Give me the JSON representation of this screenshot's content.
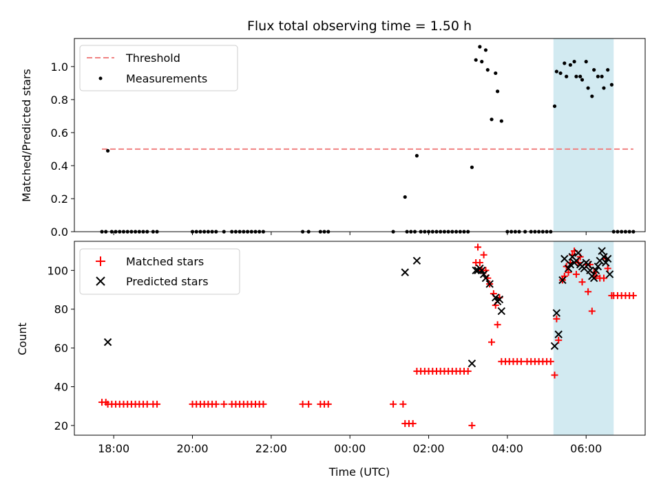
{
  "chart_data": {
    "type": "scatter",
    "title": "Flux total observing time = 1.50 h",
    "xlabel": "Time (UTC)",
    "x_ticks": [
      "18:00",
      "20:00",
      "22:00",
      "00:00",
      "02:00",
      "04:00",
      "06:00"
    ],
    "x_range_hours": [
      17.0,
      31.5
    ],
    "highlight_span_hours": [
      29.17,
      30.7
    ],
    "colors": {
      "threshold": "#f08080",
      "measurement": "#000000",
      "matched": "#ff0000",
      "predicted": "#000000",
      "span": "#add8e6"
    },
    "top_panel": {
      "ylabel": "Matched/Predicted stars",
      "ylim": [
        0,
        1.17
      ],
      "y_ticks": [
        "0.0",
        "0.2",
        "0.4",
        "0.6",
        "0.8",
        "1.0"
      ],
      "legend": [
        "Threshold",
        "Measurements"
      ],
      "threshold": {
        "value": 0.5,
        "x_range_hours": [
          17.7,
          31.2
        ]
      },
      "measurements": [
        [
          17.7,
          0
        ],
        [
          17.8,
          0
        ],
        [
          17.85,
          0.49
        ],
        [
          17.95,
          0
        ],
        [
          18.05,
          0
        ],
        [
          18.15,
          0
        ],
        [
          18.25,
          0
        ],
        [
          18.35,
          0
        ],
        [
          18.45,
          0
        ],
        [
          18.55,
          0
        ],
        [
          18.65,
          0
        ],
        [
          18.75,
          0
        ],
        [
          18.85,
          0
        ],
        [
          19.0,
          0
        ],
        [
          19.1,
          0
        ],
        [
          20.0,
          0
        ],
        [
          20.1,
          0
        ],
        [
          20.2,
          0
        ],
        [
          20.3,
          0
        ],
        [
          20.4,
          0
        ],
        [
          20.5,
          0
        ],
        [
          20.6,
          0
        ],
        [
          20.8,
          0
        ],
        [
          21.0,
          0
        ],
        [
          21.1,
          0
        ],
        [
          21.2,
          0
        ],
        [
          21.3,
          0
        ],
        [
          21.4,
          0
        ],
        [
          21.5,
          0
        ],
        [
          21.6,
          0
        ],
        [
          21.7,
          0
        ],
        [
          21.8,
          0
        ],
        [
          22.8,
          0
        ],
        [
          22.95,
          0
        ],
        [
          23.25,
          0
        ],
        [
          23.35,
          0
        ],
        [
          23.45,
          0
        ],
        [
          25.1,
          0
        ],
        [
          25.4,
          0.21
        ],
        [
          25.45,
          0
        ],
        [
          25.55,
          0
        ],
        [
          25.65,
          0
        ],
        [
          25.7,
          0.46
        ],
        [
          25.8,
          0
        ],
        [
          25.9,
          0
        ],
        [
          26.0,
          0
        ],
        [
          26.1,
          0
        ],
        [
          26.2,
          0
        ],
        [
          26.3,
          0
        ],
        [
          26.4,
          0
        ],
        [
          26.5,
          0
        ],
        [
          26.6,
          0
        ],
        [
          26.7,
          0
        ],
        [
          26.8,
          0
        ],
        [
          26.9,
          0
        ],
        [
          27.0,
          0
        ],
        [
          27.1,
          0.39
        ],
        [
          27.2,
          1.04
        ],
        [
          27.3,
          1.12
        ],
        [
          27.35,
          1.03
        ],
        [
          27.45,
          1.1
        ],
        [
          27.5,
          0.98
        ],
        [
          27.6,
          0.68
        ],
        [
          27.7,
          0.96
        ],
        [
          27.75,
          0.85
        ],
        [
          27.85,
          0.67
        ],
        [
          28.0,
          0
        ],
        [
          28.1,
          0
        ],
        [
          28.2,
          0
        ],
        [
          28.3,
          0
        ],
        [
          28.45,
          0
        ],
        [
          28.6,
          0
        ],
        [
          28.7,
          0
        ],
        [
          28.8,
          0
        ],
        [
          28.9,
          0
        ],
        [
          29.0,
          0
        ],
        [
          29.1,
          0
        ],
        [
          29.2,
          0.76
        ],
        [
          29.25,
          0.97
        ],
        [
          29.35,
          0.96
        ],
        [
          29.45,
          1.02
        ],
        [
          29.5,
          0.94
        ],
        [
          29.6,
          1.01
        ],
        [
          29.7,
          1.03
        ],
        [
          29.75,
          0.94
        ],
        [
          29.85,
          0.94
        ],
        [
          29.9,
          0.92
        ],
        [
          30.0,
          1.03
        ],
        [
          30.05,
          0.87
        ],
        [
          30.15,
          0.82
        ],
        [
          30.2,
          0.98
        ],
        [
          30.3,
          0.94
        ],
        [
          30.4,
          0.94
        ],
        [
          30.45,
          0.87
        ],
        [
          30.55,
          0.98
        ],
        [
          30.65,
          0.89
        ],
        [
          30.7,
          0
        ],
        [
          30.8,
          0
        ],
        [
          30.9,
          0
        ],
        [
          31.0,
          0
        ],
        [
          31.1,
          0
        ],
        [
          31.2,
          0
        ]
      ]
    },
    "bottom_panel": {
      "ylabel": "Count",
      "ylim": [
        15,
        115
      ],
      "y_ticks": [
        "20",
        "40",
        "60",
        "80",
        "100"
      ],
      "legend": [
        "Matched stars",
        "Predicted stars"
      ],
      "matched": [
        [
          17.7,
          32
        ],
        [
          17.8,
          32
        ],
        [
          17.85,
          31
        ],
        [
          17.95,
          31
        ],
        [
          18.05,
          31
        ],
        [
          18.15,
          31
        ],
        [
          18.25,
          31
        ],
        [
          18.35,
          31
        ],
        [
          18.45,
          31
        ],
        [
          18.55,
          31
        ],
        [
          18.65,
          31
        ],
        [
          18.75,
          31
        ],
        [
          18.85,
          31
        ],
        [
          19.0,
          31
        ],
        [
          19.1,
          31
        ],
        [
          20.0,
          31
        ],
        [
          20.1,
          31
        ],
        [
          20.2,
          31
        ],
        [
          20.3,
          31
        ],
        [
          20.4,
          31
        ],
        [
          20.5,
          31
        ],
        [
          20.6,
          31
        ],
        [
          20.8,
          31
        ],
        [
          21.0,
          31
        ],
        [
          21.1,
          31
        ],
        [
          21.2,
          31
        ],
        [
          21.3,
          31
        ],
        [
          21.4,
          31
        ],
        [
          21.5,
          31
        ],
        [
          21.6,
          31
        ],
        [
          21.7,
          31
        ],
        [
          21.8,
          31
        ],
        [
          22.8,
          31
        ],
        [
          22.95,
          31
        ],
        [
          23.25,
          31
        ],
        [
          23.35,
          31
        ],
        [
          23.45,
          31
        ],
        [
          25.1,
          31
        ],
        [
          25.35,
          31
        ],
        [
          25.4,
          21
        ],
        [
          25.5,
          21
        ],
        [
          25.6,
          21
        ],
        [
          25.7,
          48
        ],
        [
          25.8,
          48
        ],
        [
          25.9,
          48
        ],
        [
          26.0,
          48
        ],
        [
          26.1,
          48
        ],
        [
          26.2,
          48
        ],
        [
          26.3,
          48
        ],
        [
          26.4,
          48
        ],
        [
          26.5,
          48
        ],
        [
          26.6,
          48
        ],
        [
          26.7,
          48
        ],
        [
          26.8,
          48
        ],
        [
          26.9,
          48
        ],
        [
          27.0,
          48
        ],
        [
          27.1,
          20
        ],
        [
          27.2,
          104
        ],
        [
          27.25,
          112
        ],
        [
          27.3,
          104
        ],
        [
          27.35,
          100
        ],
        [
          27.4,
          108
        ],
        [
          27.45,
          100
        ],
        [
          27.5,
          96
        ],
        [
          27.55,
          93
        ],
        [
          27.6,
          63
        ],
        [
          27.65,
          88
        ],
        [
          27.7,
          82
        ],
        [
          27.75,
          72
        ],
        [
          27.8,
          86
        ],
        [
          27.85,
          53
        ],
        [
          27.95,
          53
        ],
        [
          28.05,
          53
        ],
        [
          28.15,
          53
        ],
        [
          28.25,
          53
        ],
        [
          28.35,
          53
        ],
        [
          28.5,
          53
        ],
        [
          28.6,
          53
        ],
        [
          28.7,
          53
        ],
        [
          28.8,
          53
        ],
        [
          28.9,
          53
        ],
        [
          29.0,
          53
        ],
        [
          29.1,
          53
        ],
        [
          29.2,
          46
        ],
        [
          29.25,
          75
        ],
        [
          29.3,
          64
        ],
        [
          29.4,
          95
        ],
        [
          29.45,
          97
        ],
        [
          29.5,
          102
        ],
        [
          29.55,
          99
        ],
        [
          29.6,
          104
        ],
        [
          29.65,
          108
        ],
        [
          29.7,
          110
        ],
        [
          29.75,
          98
        ],
        [
          29.8,
          104
        ],
        [
          29.85,
          107
        ],
        [
          29.9,
          94
        ],
        [
          30.0,
          103
        ],
        [
          30.05,
          89
        ],
        [
          30.1,
          103
        ],
        [
          30.15,
          79
        ],
        [
          30.2,
          99
        ],
        [
          30.25,
          97
        ],
        [
          30.35,
          96
        ],
        [
          30.45,
          96
        ],
        [
          30.5,
          106
        ],
        [
          30.55,
          101
        ],
        [
          30.65,
          87
        ],
        [
          30.7,
          87
        ],
        [
          30.8,
          87
        ],
        [
          30.9,
          87
        ],
        [
          31.0,
          87
        ],
        [
          31.1,
          87
        ],
        [
          31.2,
          87
        ]
      ],
      "predicted": [
        [
          17.85,
          63
        ],
        [
          25.4,
          99
        ],
        [
          25.7,
          105
        ],
        [
          27.1,
          52
        ],
        [
          27.2,
          100
        ],
        [
          27.25,
          100
        ],
        [
          27.3,
          101
        ],
        [
          27.35,
          100
        ],
        [
          27.4,
          98
        ],
        [
          27.45,
          96
        ],
        [
          27.55,
          93
        ],
        [
          27.7,
          86
        ],
        [
          27.75,
          84
        ],
        [
          27.8,
          85
        ],
        [
          27.85,
          79
        ],
        [
          29.2,
          61
        ],
        [
          29.25,
          78
        ],
        [
          29.3,
          67
        ],
        [
          29.4,
          95
        ],
        [
          29.45,
          106
        ],
        [
          29.55,
          101
        ],
        [
          29.6,
          103
        ],
        [
          29.65,
          107
        ],
        [
          29.7,
          104
        ],
        [
          29.75,
          105
        ],
        [
          29.8,
          109
        ],
        [
          29.85,
          103
        ],
        [
          29.9,
          102
        ],
        [
          29.95,
          101
        ],
        [
          30.0,
          104
        ],
        [
          30.05,
          103
        ],
        [
          30.1,
          100
        ],
        [
          30.15,
          97
        ],
        [
          30.2,
          96
        ],
        [
          30.25,
          100
        ],
        [
          30.3,
          102
        ],
        [
          30.35,
          105
        ],
        [
          30.4,
          110
        ],
        [
          30.45,
          107
        ],
        [
          30.5,
          104
        ],
        [
          30.55,
          106
        ],
        [
          30.6,
          98
        ]
      ]
    }
  }
}
